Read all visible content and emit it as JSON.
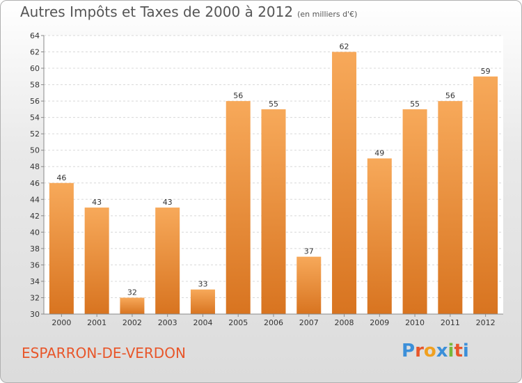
{
  "header": {
    "title": "Autres Impôts et Taxes de 2000 à 2012",
    "subtitle": "(en milliers d'€)"
  },
  "footer": {
    "commune": "ESPARRON-DE-VERDON",
    "logo_letters": [
      "P",
      "r",
      "o",
      "x",
      "i",
      "t",
      "i"
    ],
    "logo_colors": [
      "#3b8fd9",
      "#e8562a",
      "#f0a020",
      "#3b8fd9",
      "#78b83a",
      "#e8562a",
      "#3b8fd9"
    ]
  },
  "chart_data": {
    "type": "bar",
    "title": "Autres Impôts et Taxes de 2000 à 2012",
    "subtitle": "(en milliers d'€)",
    "categories": [
      "2000",
      "2001",
      "2002",
      "2003",
      "2004",
      "2005",
      "2006",
      "2007",
      "2008",
      "2009",
      "2010",
      "2011",
      "2012"
    ],
    "values": [
      46,
      43,
      32,
      43,
      33,
      56,
      55,
      37,
      62,
      49,
      55,
      56,
      59
    ],
    "ylim": [
      30,
      64
    ],
    "yticks": [
      30,
      32,
      34,
      36,
      38,
      40,
      42,
      44,
      46,
      48,
      50,
      52,
      54,
      56,
      58,
      60,
      62,
      64
    ],
    "grid": true,
    "bar_color_top": "#f7a95a",
    "bar_color_bottom": "#d87420"
  }
}
